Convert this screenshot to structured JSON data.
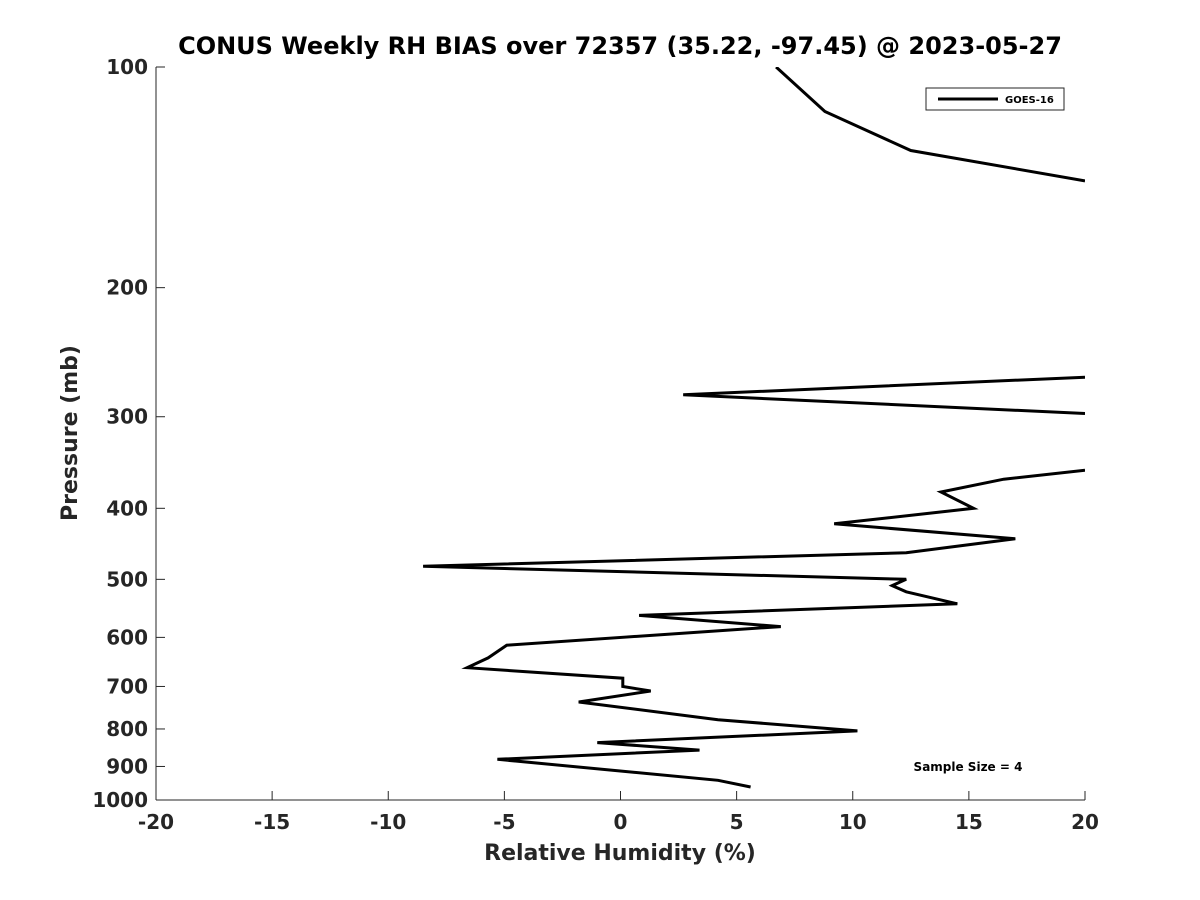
{
  "chart_data": {
    "type": "line",
    "title": "CONUS Weekly RH BIAS over 72357 (35.22, -97.45) @ 2023-05-27",
    "xlabel": "Relative Humidity (%)",
    "ylabel": "Pressure (mb)",
    "xlim": [
      -20,
      20
    ],
    "ylim": [
      1000,
      100
    ],
    "y_scale": "log",
    "x_ticks": [
      -20,
      -15,
      -10,
      -5,
      0,
      5,
      10,
      15,
      20
    ],
    "x_tick_labels": [
      "-20",
      "-15",
      "-10",
      "-5",
      "0",
      "5",
      "10",
      "15",
      "20"
    ],
    "y_ticks": [
      100,
      200,
      300,
      400,
      500,
      600,
      700,
      800,
      900,
      1000
    ],
    "y_tick_labels": [
      "100",
      "200",
      "300",
      "400",
      "500",
      "600",
      "700",
      "800",
      "900",
      "1000"
    ],
    "grid": false,
    "legend_position": "top-right",
    "annotation": "Sample Size = 4",
    "series": [
      {
        "name": "GOES-16",
        "color": "#000000",
        "segments": [
          [
            [
              6.7,
              100
            ],
            [
              8.8,
              115
            ],
            [
              12.5,
              130
            ],
            [
              20,
              143
            ]
          ],
          [
            [
              20,
              265
            ],
            [
              2.7,
              280
            ],
            [
              20,
              297
            ]
          ],
          [
            [
              20,
              355
            ],
            [
              16.5,
              365
            ],
            [
              13.8,
              380
            ],
            [
              15.2,
              400
            ],
            [
              9.2,
              420
            ],
            [
              17.0,
              440
            ],
            [
              12.3,
              460
            ],
            [
              -8.5,
              480
            ],
            [
              12.3,
              500
            ],
            [
              11.7,
              510
            ],
            [
              12.3,
              520
            ],
            [
              14.5,
              540
            ],
            [
              0.8,
              560
            ],
            [
              6.9,
              580
            ],
            [
              -4.9,
              615
            ],
            [
              -5.7,
              640
            ],
            [
              -6.6,
              660
            ],
            [
              0.1,
              682
            ],
            [
              0.1,
              700
            ],
            [
              1.3,
              710
            ],
            [
              -1.8,
              735
            ],
            [
              4.2,
              777
            ],
            [
              10.2,
              805
            ],
            [
              -1.0,
              835
            ],
            [
              3.4,
              855
            ],
            [
              -5.3,
              880
            ],
            [
              4.2,
              940
            ],
            [
              5.6,
              960
            ]
          ]
        ]
      }
    ]
  }
}
